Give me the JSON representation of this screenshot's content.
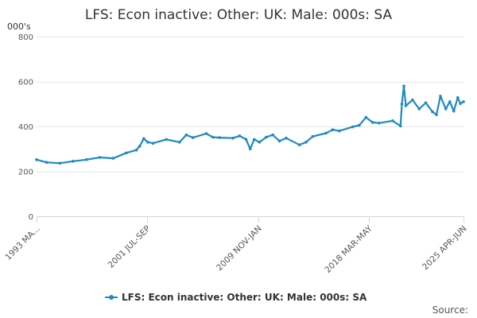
{
  "chart_data": {
    "type": "line",
    "title": "LFS: Econ inactive: Other: UK: Male: 000s: SA",
    "ylabel": "000's",
    "ylim": [
      0,
      800
    ],
    "yticks": [
      "0",
      "200",
      "400",
      "600",
      "800"
    ],
    "x_start": "1993 MAR-MAY",
    "x_end": "2025 APR-JUN",
    "xtick_labels": [
      {
        "label": "1993 MA...",
        "value": 1993.25
      },
      {
        "label": "2001 JUL-SEP",
        "value": 2001.58
      },
      {
        "label": "2009 NOV-JAN",
        "value": 2009.92
      },
      {
        "label": "2018 MAR-MAY",
        "value": 2018.25
      },
      {
        "label": "2025 APR-JUN",
        "value": 2025.33
      }
    ],
    "grid": true,
    "legend_position": "bottom",
    "series": [
      {
        "name": "LFS: Econ inactive: Other: UK: Male: 000s: SA",
        "color": "#1f8ac2",
        "x": [
          1993.25,
          1994.0,
          1995.0,
          1996.0,
          1997.0,
          1998.0,
          1999.0,
          2000.0,
          2000.75,
          2001.0,
          2001.3,
          2001.6,
          2002.0,
          2003.0,
          2004.0,
          2004.5,
          2005.0,
          2006.0,
          2006.5,
          2007.0,
          2008.0,
          2008.5,
          2009.0,
          2009.3,
          2009.6,
          2010.0,
          2010.5,
          2011.0,
          2011.5,
          2012.0,
          2013.0,
          2013.5,
          2014.0,
          2015.0,
          2015.5,
          2016.0,
          2017.0,
          2017.5,
          2018.0,
          2018.5,
          2019.0,
          2020.0,
          2020.6,
          2020.7,
          2020.85,
          2021.0,
          2021.5,
          2022.0,
          2022.5,
          2023.0,
          2023.3,
          2023.6,
          2024.0,
          2024.3,
          2024.6,
          2024.9,
          2025.1,
          2025.33
        ],
        "values": [
          252,
          240,
          236,
          245,
          252,
          262,
          258,
          282,
          295,
          312,
          346,
          330,
          325,
          342,
          330,
          362,
          350,
          368,
          352,
          350,
          348,
          358,
          342,
          300,
          342,
          330,
          352,
          362,
          335,
          348,
          318,
          330,
          355,
          370,
          385,
          380,
          398,
          405,
          440,
          418,
          415,
          425,
          402,
          500,
          580,
          492,
          518,
          478,
          505,
          465,
          452,
          535,
          478,
          510,
          468,
          528,
          502,
          510
        ]
      }
    ]
  },
  "legend": {
    "label": "LFS: Econ inactive: Other: UK: Male: 000s: SA"
  },
  "source": {
    "label": "Source:"
  }
}
